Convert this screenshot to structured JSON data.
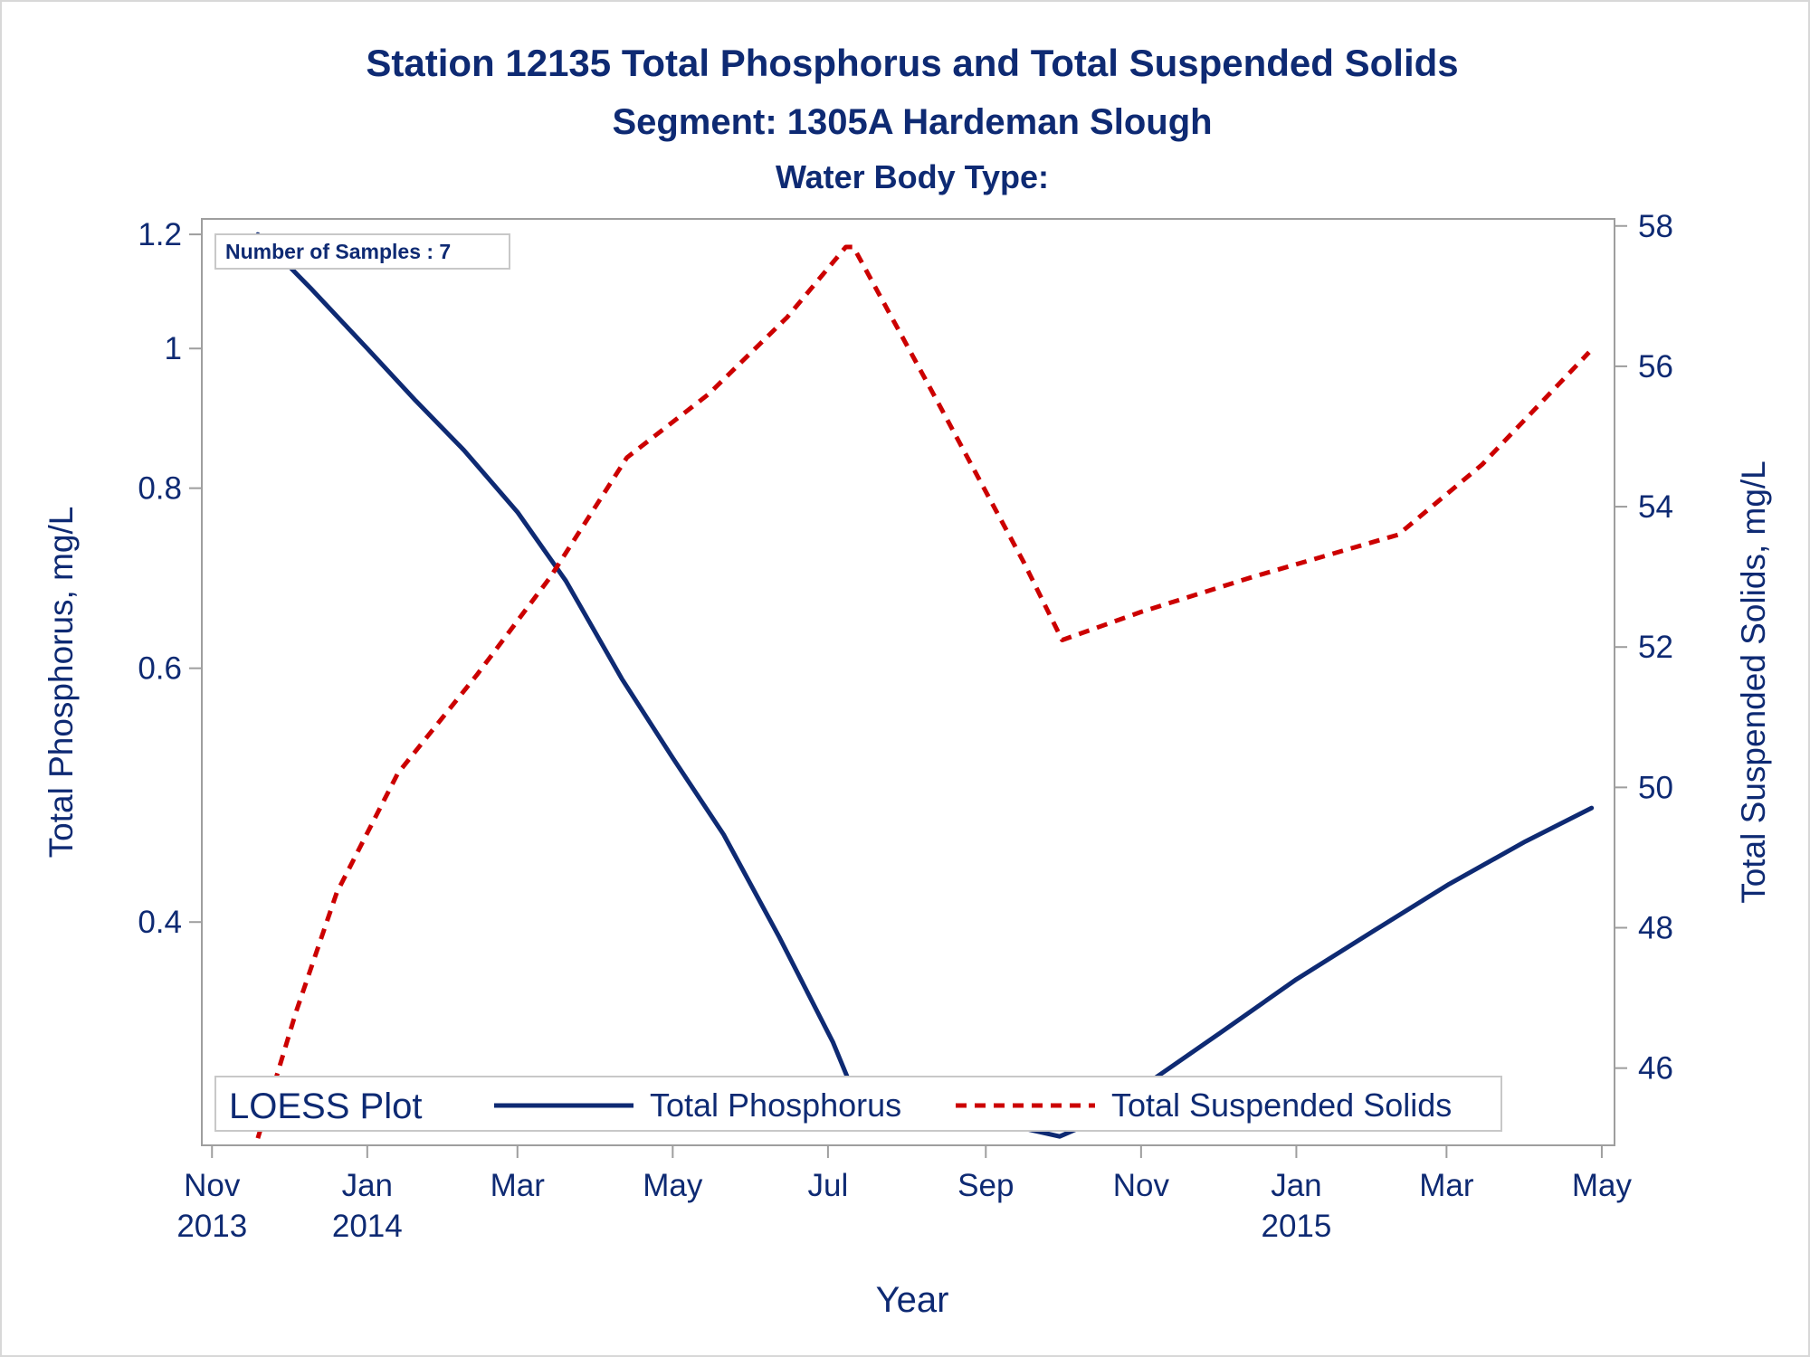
{
  "titles": {
    "line1": "Station 12135  Total Phosphorus and Total Suspended Solids",
    "line2": "Segment: 1305A  Hardeman Slough",
    "line3": "Water Body Type:"
  },
  "inset_label": "Number of Samples : 7",
  "legend": {
    "title": "LOESS Plot",
    "entries": [
      "Total Phosphorus",
      "Total Suspended Solids"
    ]
  },
  "colors": {
    "text": "#0e2a73",
    "tp_line": "#0e2a73",
    "tss_line": "#cc0000",
    "frame": "#9e9e9e"
  },
  "chart_data": {
    "type": "line",
    "title": "Station 12135  Total Phosphorus and Total Suspended Solids",
    "xlabel": "Year",
    "ylabel": "Total Phosphorus, mg/L",
    "y2label": "Total Suspended Solids, mg/L",
    "x_ticks": [
      {
        "date": "2013-11-01",
        "label": "Nov",
        "sublabel": "2013"
      },
      {
        "date": "2014-01-01",
        "label": "Jan",
        "sublabel": "2014"
      },
      {
        "date": "2014-03-01",
        "label": "Mar",
        "sublabel": ""
      },
      {
        "date": "2014-05-01",
        "label": "May",
        "sublabel": ""
      },
      {
        "date": "2014-07-01",
        "label": "Jul",
        "sublabel": ""
      },
      {
        "date": "2014-09-01",
        "label": "Sep",
        "sublabel": ""
      },
      {
        "date": "2014-11-01",
        "label": "Nov",
        "sublabel": ""
      },
      {
        "date": "2015-01-01",
        "label": "Jan",
        "sublabel": "2015"
      },
      {
        "date": "2015-03-01",
        "label": "Mar",
        "sublabel": ""
      },
      {
        "date": "2015-05-01",
        "label": "May",
        "sublabel": ""
      }
    ],
    "xlim": [
      "2013-10-28",
      "2015-05-06"
    ],
    "y_scale": "log",
    "ylim": [
      0.28,
      1.23
    ],
    "y_ticks": [
      0.4,
      0.6,
      0.8,
      1.0,
      1.2
    ],
    "y_tick_labels": [
      "0.4",
      "0.6",
      "0.8",
      "1",
      "1.2"
    ],
    "y2lim": [
      44.9,
      58.1
    ],
    "y2_ticks": [
      46,
      48,
      50,
      52,
      54,
      56,
      58
    ],
    "y2_tick_labels": [
      "46",
      "48",
      "50",
      "52",
      "54",
      "56",
      "58"
    ],
    "legend_position": "bottom-inside",
    "series": [
      {
        "name": "Total Phosphorus",
        "axis": "left",
        "style": "solid",
        "x": [
          "2013-11-19",
          "2013-12-10",
          "2014-01-01",
          "2014-01-20",
          "2014-02-08",
          "2014-03-01",
          "2014-03-20",
          "2014-04-11",
          "2014-05-01",
          "2014-05-21",
          "2014-06-12",
          "2014-07-03",
          "2014-07-10",
          "2014-08-05",
          "2014-09-03",
          "2014-09-30",
          "2014-10-08",
          "2014-11-01",
          "2014-12-02",
          "2015-01-01",
          "2015-02-01",
          "2015-03-02",
          "2015-04-01",
          "2015-04-27"
        ],
        "y": [
          1.2,
          1.1,
          1.0,
          0.92,
          0.85,
          0.77,
          0.69,
          0.59,
          0.52,
          0.46,
          0.39,
          0.33,
          0.308,
          0.3,
          0.291,
          0.284,
          0.288,
          0.307,
          0.335,
          0.365,
          0.395,
          0.425,
          0.455,
          0.48
        ]
      },
      {
        "name": "Total Suspended Solids",
        "axis": "right",
        "style": "dashed",
        "x": [
          "2013-11-19",
          "2013-12-04",
          "2013-12-20",
          "2014-01-13",
          "2014-02-13",
          "2014-03-14",
          "2014-04-13",
          "2014-05-15",
          "2014-06-15",
          "2014-07-08",
          "2014-07-11",
          "2014-08-13",
          "2014-09-16",
          "2014-10-01",
          "2014-11-01",
          "2014-12-15",
          "2015-02-10",
          "2015-03-15",
          "2015-04-26"
        ],
        "y": [
          45.0,
          46.8,
          48.5,
          50.2,
          51.6,
          53.0,
          54.7,
          55.6,
          56.7,
          57.7,
          57.7,
          55.5,
          53.2,
          52.1,
          52.5,
          53.0,
          53.6,
          54.6,
          56.2
        ]
      }
    ]
  }
}
